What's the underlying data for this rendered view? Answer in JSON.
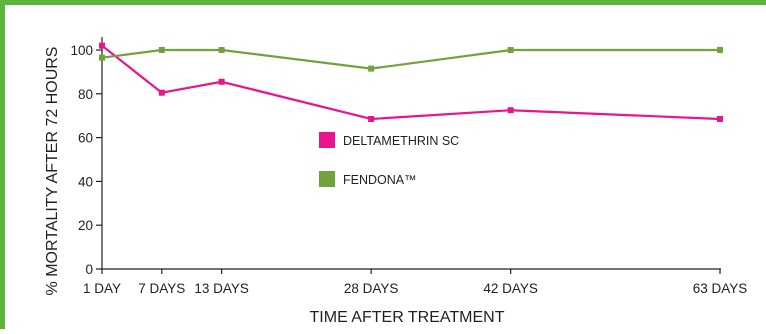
{
  "chart_data": {
    "type": "line",
    "x": [
      "1 DAY",
      "7 DAYS",
      "13 DAYS",
      "28 DAYS",
      "42 DAYS",
      "63 DAYS"
    ],
    "x_values": [
      1,
      7,
      13,
      28,
      42,
      63
    ],
    "series": [
      {
        "name": "DELTAMETHRIN SC",
        "values": [
          102,
          80.5,
          85.5,
          68.5,
          72.5,
          68.5
        ],
        "color": "#ea148c"
      },
      {
        "name": "FENDONA™",
        "values": [
          96.5,
          100,
          100,
          91.5,
          100,
          100
        ],
        "color": "#72a23d"
      }
    ],
    "title": "",
    "xlabel": "TIME AFTER TREATMENT",
    "ylabel": "% MORTALITY AFTER 72 HOURS",
    "y_ticks": [
      0,
      20,
      40,
      60,
      80,
      100
    ],
    "ylim": [
      0,
      105
    ],
    "xlim": [
      1,
      63
    ],
    "grid": false,
    "legend_position": "center",
    "frame_color": "#5db53c"
  }
}
